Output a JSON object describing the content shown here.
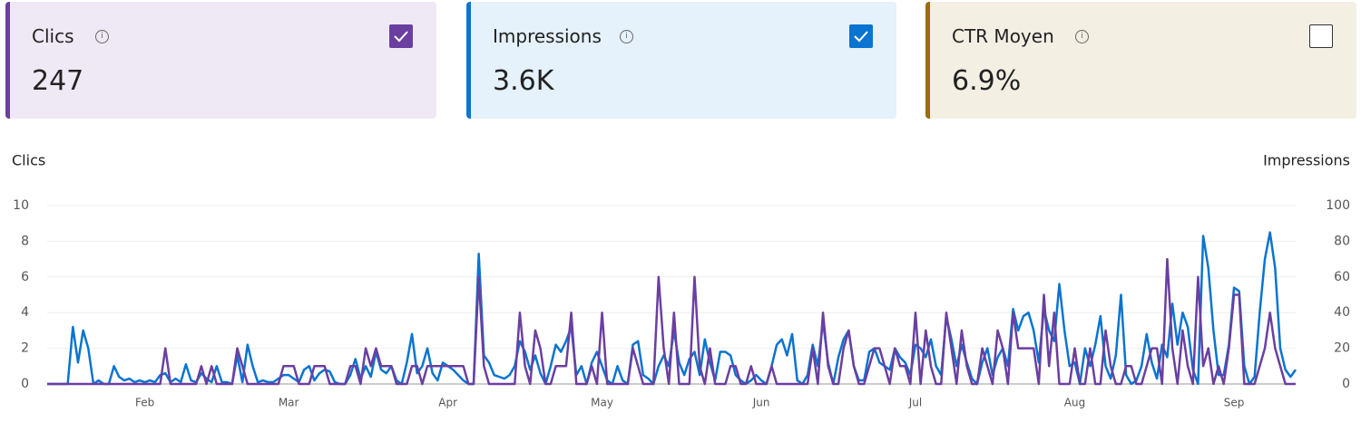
{
  "cards": [
    {
      "title": "Clics",
      "value": "247",
      "checked": true,
      "color": "#6b3fa0",
      "background": "#efe9f6"
    },
    {
      "title": "Impressions",
      "value": "3.6K",
      "checked": true,
      "color": "#0a74d0",
      "background": "#e5f1fb"
    },
    {
      "title": "CTR Moyen",
      "value": "6.9%",
      "checked": false,
      "color": "#9a6b0a",
      "background": "#f3efe3"
    }
  ],
  "chart_data": {
    "type": "line",
    "ylabel": "Clics",
    "y2label": "Impressions",
    "ylim": [
      0,
      10
    ],
    "yticks": [
      0,
      2,
      4,
      6,
      8,
      10
    ],
    "y2lim": [
      0,
      100
    ],
    "y2ticks": [
      0,
      20,
      40,
      60,
      80,
      100
    ],
    "grid": true,
    "categories": [
      null,
      null,
      null,
      null,
      null,
      null,
      null,
      null,
      null,
      null,
      null,
      null,
      null,
      null,
      null,
      null,
      null,
      null,
      null,
      "Feb",
      null,
      null,
      null,
      null,
      null,
      null,
      null,
      null,
      null,
      null,
      null,
      null,
      null,
      null,
      null,
      null,
      null,
      null,
      null,
      null,
      null,
      null,
      null,
      null,
      null,
      null,
      null,
      "Mar",
      null,
      null,
      null,
      null,
      null,
      null,
      null,
      null,
      null,
      null,
      null,
      null,
      null,
      null,
      null,
      null,
      null,
      null,
      null,
      null,
      null,
      null,
      null,
      null,
      null,
      null,
      null,
      null,
      null,
      null,
      "Apr",
      null,
      null,
      null,
      null,
      null,
      null,
      null,
      null,
      null,
      null,
      null,
      null,
      null,
      null,
      null,
      null,
      null,
      null,
      null,
      null,
      null,
      null,
      null,
      null,
      null,
      null,
      null,
      null,
      null,
      "May",
      null,
      null,
      null,
      null,
      null,
      null,
      null,
      null,
      null,
      null,
      null,
      null,
      null,
      null,
      null,
      null,
      null,
      null,
      null,
      null,
      null,
      null,
      null,
      null,
      null,
      null,
      null,
      null,
      null,
      null,
      "Jun",
      null,
      null,
      null,
      null,
      null,
      null,
      null,
      null,
      null,
      null,
      null,
      null,
      null,
      null,
      null,
      null,
      null,
      null,
      null,
      null,
      null,
      null,
      null,
      null,
      null,
      null,
      null,
      null,
      null,
      "Jul",
      null,
      null,
      null,
      null,
      null,
      null,
      null,
      null,
      null,
      null,
      null,
      null,
      null,
      null,
      null,
      null,
      null,
      null,
      null,
      null,
      null,
      null,
      null,
      null,
      null,
      null,
      null,
      null,
      null,
      null,
      "Aug",
      null,
      null,
      null,
      null,
      null,
      null,
      null,
      null,
      null,
      null,
      null,
      null,
      null,
      null,
      null,
      null,
      null,
      null,
      null,
      null,
      null,
      null,
      null,
      null,
      null,
      null,
      null,
      null,
      null,
      null,
      "Sep",
      null,
      null,
      null,
      null,
      null,
      null,
      null,
      null,
      null,
      null,
      null,
      null
    ],
    "series": [
      {
        "name": "Clics",
        "color": "#6b3fa0",
        "axis": "y",
        "values": [
          0,
          0,
          0,
          0,
          0,
          0,
          0,
          0,
          0,
          0,
          0,
          0,
          0,
          0,
          0,
          0,
          0,
          0,
          0,
          0,
          0,
          0,
          0,
          2,
          0,
          0,
          0,
          0,
          0,
          0,
          1,
          0,
          1,
          0,
          0,
          0,
          0,
          2,
          1,
          0,
          0,
          0,
          0,
          0,
          0,
          0,
          1,
          1,
          1,
          0,
          0,
          0,
          1,
          1,
          1,
          0,
          0,
          0,
          0,
          1,
          1,
          0,
          2,
          1,
          2,
          1,
          1,
          1,
          0,
          0,
          0,
          1,
          1,
          0,
          1,
          1,
          1,
          1,
          1,
          1,
          1,
          1,
          0,
          0,
          6,
          1,
          0,
          0,
          0,
          0,
          0,
          0,
          4,
          1,
          0,
          3,
          2,
          0,
          0,
          1,
          1,
          1,
          4,
          0,
          0,
          0,
          1,
          0,
          4,
          0,
          0,
          0,
          0,
          0,
          2,
          1,
          0,
          0,
          0,
          6,
          2,
          0,
          4,
          0,
          0,
          0,
          6,
          1,
          0,
          2,
          0,
          0,
          0,
          1,
          1,
          0,
          0,
          1,
          0,
          0,
          0,
          1,
          0,
          0,
          0,
          0,
          0,
          0,
          0,
          2,
          0,
          4,
          1,
          0,
          0,
          2,
          3,
          1,
          0,
          0,
          1,
          2,
          2,
          1,
          0,
          2,
          1,
          1,
          0,
          4,
          0,
          3,
          1,
          0,
          0,
          4,
          2,
          0,
          3,
          1,
          0,
          0,
          2,
          1,
          0,
          3,
          2,
          0,
          4,
          2,
          2,
          2,
          2,
          0,
          5,
          1,
          4,
          0,
          0,
          0,
          2,
          0,
          0,
          2,
          0,
          0,
          3,
          1,
          0,
          0,
          1,
          1,
          0,
          0,
          1,
          2,
          2,
          0,
          7,
          2,
          0,
          3,
          1,
          0,
          6,
          1,
          2,
          0,
          1,
          0,
          2,
          5,
          5,
          0,
          0,
          0,
          1,
          2,
          4,
          2,
          1,
          0,
          0,
          0
        ]
      },
      {
        "name": "Impressions",
        "color": "#0a74d0",
        "axis": "y2",
        "values": [
          0,
          0,
          0,
          0,
          0,
          32,
          12,
          30,
          20,
          0,
          2,
          0,
          0,
          10,
          4,
          2,
          3,
          1,
          2,
          1,
          2,
          1,
          5,
          6,
          1,
          3,
          1,
          11,
          2,
          1,
          6,
          3,
          1,
          10,
          1,
          1,
          0,
          16,
          1,
          22,
          10,
          1,
          2,
          1,
          1,
          3,
          5,
          5,
          3,
          1,
          8,
          10,
          2,
          6,
          8,
          7,
          1,
          0,
          0,
          5,
          14,
          3,
          10,
          4,
          18,
          8,
          6,
          10,
          2,
          0,
          12,
          28,
          6,
          10,
          20,
          6,
          2,
          12,
          10,
          8,
          5,
          2,
          0,
          0,
          73,
          16,
          12,
          5,
          4,
          3,
          5,
          10,
          24,
          18,
          8,
          16,
          6,
          0,
          10,
          22,
          18,
          24,
          32,
          5,
          10,
          0,
          12,
          18,
          10,
          2,
          0,
          10,
          2,
          0,
          22,
          24,
          5,
          3,
          0,
          10,
          16,
          10,
          30,
          12,
          5,
          14,
          18,
          5,
          25,
          12,
          2,
          18,
          18,
          16,
          5,
          2,
          0,
          2,
          5,
          2,
          0,
          10,
          22,
          25,
          16,
          28,
          2,
          0,
          5,
          22,
          10,
          35,
          12,
          0,
          15,
          25,
          30,
          10,
          2,
          2,
          18,
          20,
          12,
          10,
          8,
          20,
          15,
          12,
          5,
          22,
          20,
          15,
          25,
          10,
          5,
          38,
          25,
          10,
          22,
          12,
          3,
          0,
          12,
          20,
          5,
          15,
          20,
          10,
          42,
          30,
          38,
          40,
          30,
          12,
          42,
          30,
          24,
          56,
          30,
          10,
          12,
          0,
          20,
          10,
          22,
          38,
          10,
          3,
          16,
          50,
          5,
          0,
          2,
          10,
          28,
          12,
          3,
          22,
          15,
          45,
          22,
          40,
          32,
          8,
          0,
          83,
          65,
          30,
          5,
          5,
          22,
          54,
          52,
          10,
          0,
          4,
          40,
          70,
          85,
          65,
          20,
          8,
          4,
          8
        ]
      }
    ]
  }
}
